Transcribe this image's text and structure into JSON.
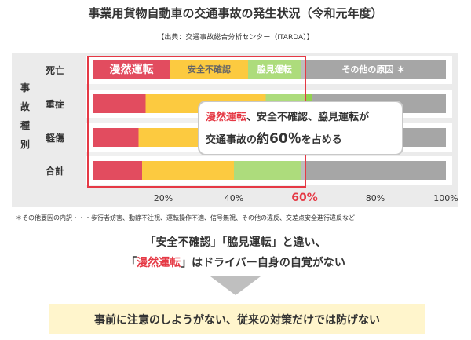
{
  "title": "事業用貨物自動車の交通事故の発生状況（令和元年度）",
  "source": "【出典：交通事故総合分析センター（ITARDA）】",
  "category_label": "事故種別",
  "chart_data": {
    "type": "bar",
    "orientation": "horizontal",
    "stacked": true,
    "title": "事業用貨物自動車の交通事故の発生状況（令和元年度）",
    "categories": [
      "死亡",
      "重症",
      "軽傷",
      "合計"
    ],
    "series": [
      {
        "name": "漫然運転",
        "color": "#d8102a",
        "values": [
          22,
          15,
          13,
          14
        ]
      },
      {
        "name": "安全不確認",
        "color": "#fbb800",
        "values": [
          22,
          34,
          35,
          26
        ]
      },
      {
        "name": "脇見運転",
        "color": "#92d050",
        "values": [
          15,
          13,
          15,
          19
        ]
      },
      {
        "name": "その他の原因＊",
        "color": "#a6a6a6",
        "values": [
          41,
          38,
          37,
          41
        ]
      }
    ],
    "segment_labels": [
      "漫然運転",
      "安全不確認",
      "脇見運転",
      "その他の原因 ＊"
    ],
    "xticks": [
      "20%",
      "40%",
      "60%",
      "80%",
      "100%"
    ],
    "xlim": [
      0,
      100
    ],
    "highlight_tick": "60%",
    "grid": false,
    "legend": "inline"
  },
  "callout": {
    "l1_a": "漫然運転",
    "l1_b": "、安全不確認、脇見運転が",
    "l2_a": "交通事故の",
    "l2_b": "約",
    "l2_c": "60％",
    "l2_d": "を占める"
  },
  "note": "＊その他要因の内訳・・・歩行者妨害、動静不注視、運転操作不適、信号無視、その他の違反、交差点安全進行違反など",
  "msg1": "「安全不確認」「脇見運転」と違い、",
  "msg2_a": "「",
  "msg2_b": "漫然運転",
  "msg2_c": "」はドライバー自身の自覚がない",
  "bottom": "事前に注意のしようがない、従来の対策だけでは防げない",
  "colors": {
    "accent_red": "#e53945",
    "note_box": "#fff5cc"
  }
}
